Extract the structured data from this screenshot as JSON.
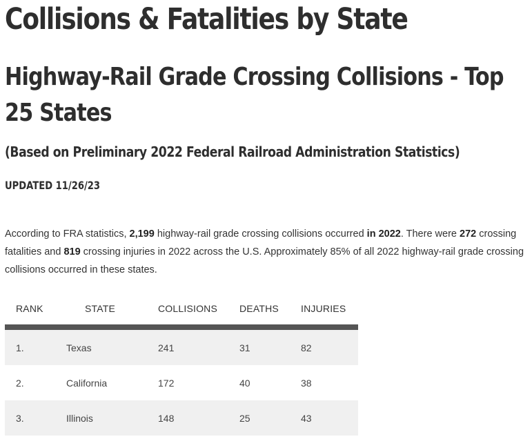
{
  "title": "Collisions & Fatalities by State",
  "subtitle": "Highway-Rail Grade Crossing Collisions - Top 25 States",
  "basis": "(Based on Preliminary 2022 Federal Railroad Administration Statistics)",
  "updated": "UPDATED 11/26/23",
  "intro": {
    "p1": "According to FRA statistics, ",
    "collisions": "2,199",
    "p2": " highway-rail grade crossing collisions occurred ",
    "year": "in 2022",
    "p3": ". There were ",
    "fatalities": "272",
    "p4": " crossing fatalities and ",
    "injuries": "819",
    "p5": " crossing injuries in 2022 across the U.S. Approximately 85% of all 2022 highway-rail grade crossing collisions occurred in these states."
  },
  "table": {
    "headers": {
      "rank": "RANK",
      "state": "STATE",
      "collisions": "COLLISIONS",
      "deaths": "DEATHS",
      "injuries": "INJURIES"
    },
    "rows": [
      {
        "rank": "1.",
        "state": "Texas",
        "collisions": "241",
        "deaths": "31",
        "injuries": "82"
      },
      {
        "rank": "2.",
        "state": "California",
        "collisions": "172",
        "deaths": "40",
        "injuries": "38"
      },
      {
        "rank": "3.",
        "state": "Illinois",
        "collisions": "148",
        "deaths": "25",
        "injuries": "43"
      }
    ]
  }
}
